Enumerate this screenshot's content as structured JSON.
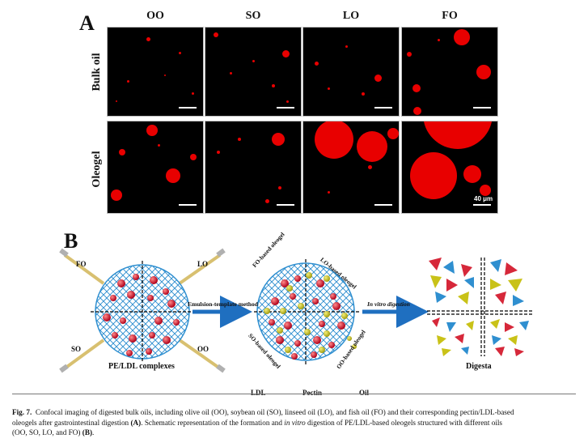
{
  "panel_a": {
    "letter": "A",
    "columns": [
      "OO",
      "SO",
      "LO",
      "FO"
    ],
    "rows": [
      "Bulk oil",
      "Oleogel"
    ],
    "scale_bar": "40 μm"
  },
  "panel_b": {
    "letter": "B",
    "left_labels": {
      "fo": "FO",
      "lo": "LO",
      "so": "SO",
      "oo": "OO"
    },
    "complex_caption": "PE/LDL complexes",
    "arrow1_label": "Emulsion-template method",
    "oleogel_labels": {
      "fo": "FO-based oleogel",
      "lo": "LO-based oleogel",
      "so": "SO-based oleogel",
      "oo": "OO-based oleogel"
    },
    "arrow2_label": "In vitro digestion",
    "digesta_caption": "Digesta",
    "legend": [
      {
        "name": "LDL",
        "icon": "red-sphere-icon"
      },
      {
        "name": "Pectin",
        "icon": "pectin-chain-icon"
      },
      {
        "name": "Oil",
        "icon": "yellow-sphere-icon"
      }
    ]
  },
  "caption": {
    "figure": "Fig. 7.",
    "line1": "Confocal imaging of digested bulk oils, including olive oil (OO), soybean oil (SO), linseed oil (LO), and fish oil (FO) and their corresponding pectin/LDL-based",
    "line2a": "oleogels after gastrointestinal digestion ",
    "line2b": "(A)",
    "line2c": ". Schematic representation of the formation and ",
    "line2d": "in vitro",
    "line2e": " digestion of PE/LDL-based oleogels structured with different oils",
    "line3a": "(OO, SO, LO, and FO) ",
    "line3b": "(B)",
    "line3c": "."
  },
  "colors": {
    "droplet": "#e80000",
    "network": "#2f8fd0",
    "ldl": "#c8102e",
    "oil": "#c9c218",
    "arrow": "#1f6fc0"
  }
}
